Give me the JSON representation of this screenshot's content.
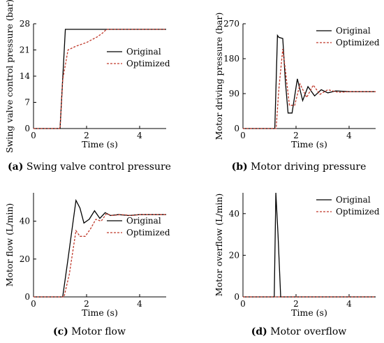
{
  "colors": {
    "original": "#000000",
    "optimized": "#c0392b",
    "axis": "#000000"
  },
  "chart_data": [
    {
      "type": "line",
      "panel": "(a)",
      "caption": "Swing valve control pressure",
      "xlabel": "Time (s)",
      "ylabel": "Swing valve control pressure (bar)",
      "xlim": [
        0,
        5
      ],
      "ylim": [
        0,
        28
      ],
      "xticks": [
        0,
        2,
        4
      ],
      "yticks": [
        0,
        7,
        14,
        21,
        28
      ],
      "legend": "right",
      "series": [
        {
          "name": "Original",
          "style": "solid",
          "x": [
            0,
            1.0,
            1.2,
            5.0
          ],
          "y": [
            0,
            0,
            26.5,
            26.5
          ]
        },
        {
          "name": "Optimized",
          "style": "dashed",
          "x": [
            0,
            1.0,
            1.1,
            1.3,
            1.6,
            2.0,
            2.4,
            2.6,
            2.75,
            5.0
          ],
          "y": [
            0,
            0,
            13,
            21,
            22,
            23,
            24.5,
            25.5,
            26.5,
            26.5
          ]
        }
      ]
    },
    {
      "type": "line",
      "panel": "(b)",
      "caption": "Motor driving pressure",
      "xlabel": "Time (s)",
      "ylabel": "Motor driving pressure (bar)",
      "xlim": [
        0,
        5
      ],
      "ylim": [
        0,
        270
      ],
      "xticks": [
        0,
        2,
        4
      ],
      "yticks": [
        0,
        90,
        180,
        270
      ],
      "legend": "top-right",
      "series": [
        {
          "name": "Original",
          "style": "solid",
          "x": [
            0,
            1.2,
            1.3,
            1.35,
            1.5,
            1.6,
            1.7,
            1.85,
            2.05,
            2.25,
            2.45,
            2.7,
            2.95,
            3.2,
            3.5,
            4.0,
            5.0
          ],
          "y": [
            0,
            0,
            240,
            235,
            232,
            120,
            40,
            40,
            128,
            72,
            108,
            84,
            100,
            92,
            97,
            95,
            95
          ]
        },
        {
          "name": "Optimized",
          "style": "dashed",
          "x": [
            0,
            1.25,
            1.35,
            1.5,
            1.6,
            1.75,
            1.95,
            2.15,
            2.4,
            2.65,
            2.9,
            3.2,
            3.6,
            4.0,
            5.0
          ],
          "y": [
            0,
            0,
            100,
            205,
            150,
            60,
            60,
            115,
            80,
            112,
            88,
            100,
            93,
            95,
            95
          ]
        }
      ]
    },
    {
      "type": "line",
      "panel": "(c)",
      "caption": "Motor flow",
      "xlabel": "Time (s)",
      "ylabel": "Motor flow (L/min)",
      "xlim": [
        0,
        5
      ],
      "ylim": [
        0,
        55
      ],
      "xticks": [
        0,
        2,
        4
      ],
      "yticks": [
        0,
        20,
        40
      ],
      "legend": "right",
      "series": [
        {
          "name": "Original",
          "style": "solid",
          "x": [
            0,
            1.1,
            1.3,
            1.6,
            1.75,
            1.9,
            2.1,
            2.3,
            2.5,
            2.7,
            2.9,
            3.2,
            3.6,
            4.0,
            5.0
          ],
          "y": [
            0,
            0,
            20,
            51,
            47,
            39,
            41,
            45.5,
            41.5,
            44.5,
            43,
            43.5,
            43,
            43.5,
            43.5
          ]
        },
        {
          "name": "Optimized",
          "style": "dashed",
          "x": [
            0,
            1.15,
            1.35,
            1.6,
            1.75,
            1.95,
            2.15,
            2.35,
            2.55,
            2.75,
            2.95,
            3.3,
            3.7,
            4.0,
            5.0
          ],
          "y": [
            0,
            0,
            12,
            35,
            32,
            32,
            36,
            41,
            40,
            44,
            43,
            43.5,
            43,
            43.5,
            43.5
          ]
        }
      ]
    },
    {
      "type": "line",
      "panel": "(d)",
      "caption": "Motor overflow",
      "xlabel": "Time (s)",
      "ylabel": "Motor overflow (L/min)",
      "xlim": [
        0,
        5
      ],
      "ylim": [
        0,
        50
      ],
      "xticks": [
        0,
        2,
        4
      ],
      "yticks": [
        0,
        20,
        40
      ],
      "legend": "top-right",
      "series": [
        {
          "name": "Original",
          "style": "solid",
          "x": [
            0,
            1.18,
            1.24,
            1.32,
            1.42,
            5.0
          ],
          "y": [
            0,
            0,
            50,
            30,
            0,
            0
          ]
        },
        {
          "name": "Optimized",
          "style": "dashed",
          "x": [
            0,
            5.0
          ],
          "y": [
            0,
            0
          ]
        }
      ]
    }
  ]
}
